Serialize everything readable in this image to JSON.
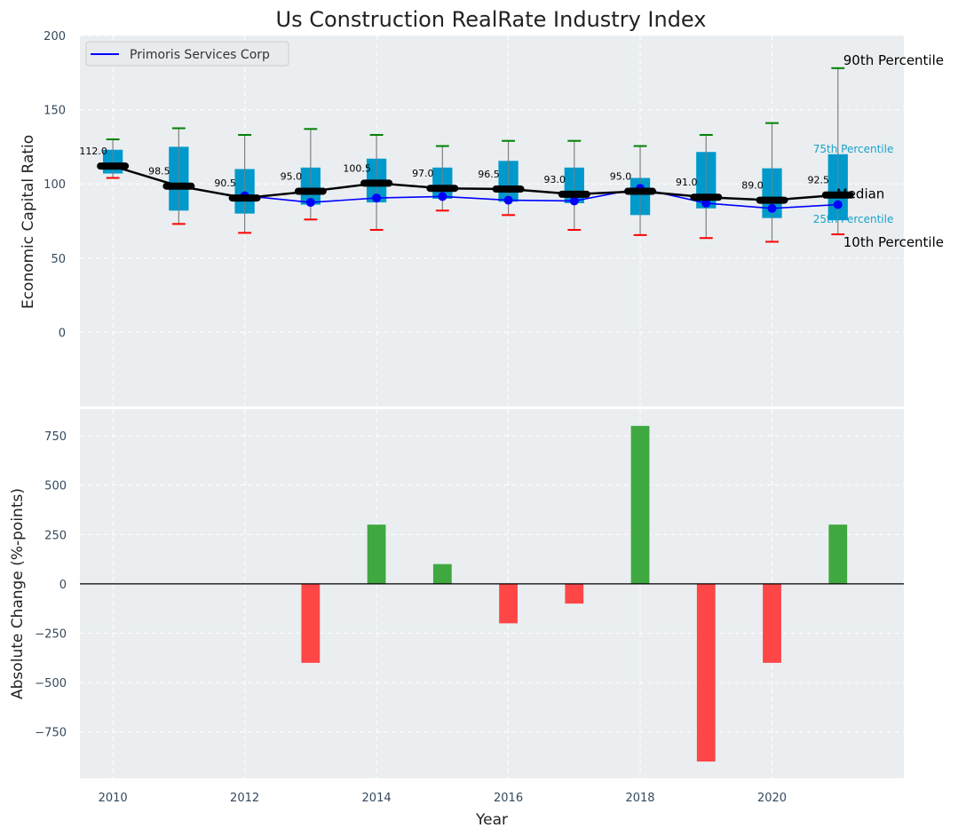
{
  "chart_data": [
    {
      "type": "box",
      "title": "Us Construction RealRate Industry Index",
      "xlabel": "",
      "ylabel": "Economic Capital Ratio",
      "xlim": [
        2009.5,
        2022
      ],
      "ylim": [
        -50,
        200
      ],
      "yticks": [
        0,
        50,
        100,
        150,
        200
      ],
      "grid": true,
      "legend": {
        "placement": "top-left",
        "entries": [
          {
            "label": "Primoris Services Corp",
            "color": "#0000ff"
          }
        ]
      },
      "years": [
        2010,
        2011,
        2012,
        2013,
        2014,
        2015,
        2016,
        2017,
        2018,
        2019,
        2020,
        2021
      ],
      "p10": [
        104,
        73,
        67,
        76,
        69,
        82,
        79,
        69,
        65.5,
        63.5,
        61,
        66
      ],
      "p25": [
        107,
        82,
        80,
        86,
        87.5,
        90,
        88,
        87,
        79,
        83.5,
        77,
        75.5
      ],
      "median": [
        112.0,
        98.5,
        90.5,
        95.0,
        100.5,
        97.0,
        96.5,
        93.0,
        95.0,
        91.0,
        89.0,
        92.5
      ],
      "p75": [
        123,
        125,
        110,
        111,
        117,
        111,
        115.5,
        111,
        104,
        121.5,
        110.5,
        120
      ],
      "p90": [
        130,
        137.5,
        133,
        137,
        133,
        125.5,
        129,
        129,
        125.5,
        133,
        141,
        178
      ],
      "company": {
        "name": "Primoris Services Corp",
        "values": [
          null,
          null,
          92,
          87.5,
          90.5,
          91.5,
          89,
          88.5,
          97,
          87,
          83.5,
          86
        ]
      },
      "median_labels": [
        "112.0",
        "98.5",
        "90.5",
        "95.0",
        "100.5",
        "97.0",
        "96.5",
        "93.0",
        "95.0",
        "91.0",
        "89.0",
        "92.5"
      ],
      "annotations": {
        "p90": "90th Percentile",
        "p75": "75th Percentile",
        "median": "Median",
        "p25": "25th Percentile",
        "p10": "10th Percentile"
      },
      "colors": {
        "box": "#0099cc",
        "median": "#000000",
        "company": "#0000ff",
        "p90": "#008000",
        "p10": "#ff0000",
        "whisker": "#808080",
        "background": "#eaeef0"
      }
    },
    {
      "type": "bar",
      "xlabel": "Year",
      "ylabel": "Absolute Change (%-points)",
      "xlim": [
        2009.5,
        2022
      ],
      "ylim": [
        -985,
        885
      ],
      "yticks": [
        -750,
        -500,
        -250,
        0,
        250,
        500,
        750
      ],
      "ytick_labels": [
        "−750",
        "−500",
        "−250",
        "0",
        "250",
        "500",
        "750"
      ],
      "xticks": [
        2010,
        2012,
        2014,
        2016,
        2018,
        2020
      ],
      "xtick_labels": [
        "2010",
        "2012",
        "2014",
        "2016",
        "2018",
        "2020"
      ],
      "grid": true,
      "categories": [
        2011,
        2012,
        2013,
        2014,
        2015,
        2016,
        2017,
        2018,
        2019,
        2020,
        2021
      ],
      "values": [
        0,
        0,
        -400,
        300,
        100,
        -200,
        -100,
        800,
        -900,
        -400,
        300
      ],
      "colors": {
        "positive": "#2ca02c",
        "negative": "#ff3333",
        "zero_line": "#000000"
      }
    }
  ]
}
